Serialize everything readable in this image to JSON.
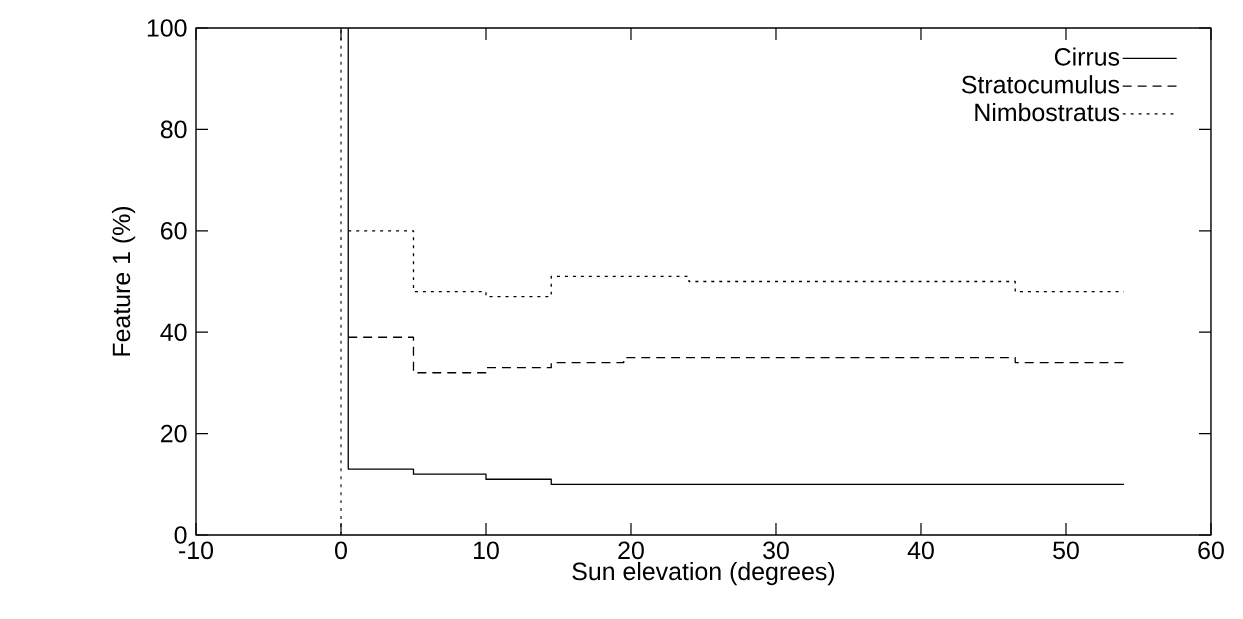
{
  "chart_data": {
    "type": "step",
    "xlabel": "Sun elevation (degrees)",
    "ylabel": "Feature 1 (%)",
    "xlim": [
      -10,
      60
    ],
    "xticks": [
      -10,
      0,
      10,
      20,
      30,
      40,
      50,
      60
    ],
    "ylim": [
      0,
      100
    ],
    "yticks": [
      0,
      20,
      40,
      60,
      80,
      100
    ],
    "legend": "top right",
    "series": [
      {
        "name": "Cirrus",
        "color": "#000000",
        "line_style": "solid",
        "x": [
          0.5,
          0.5,
          5,
          10,
          14.5,
          54
        ],
        "values": [
          100,
          13,
          12,
          11,
          10,
          10
        ]
      },
      {
        "name": "Stratocumulus",
        "color": "#000000",
        "line_style": "dashed",
        "x": [
          0.5,
          5,
          10,
          14.5,
          19.5,
          46.5,
          54
        ],
        "values": [
          39,
          32,
          33,
          34,
          35,
          34,
          34
        ]
      },
      {
        "name": "Nimbostratus",
        "color": "#000000",
        "line_style": "dotted",
        "x": [
          0.5,
          5,
          10,
          14.5,
          24,
          46.5,
          54
        ],
        "values": [
          60,
          48,
          47,
          51,
          50,
          48,
          48
        ]
      }
    ],
    "ref_lines": [
      {
        "axis": "x",
        "value": 0,
        "line_style": "dotted"
      }
    ]
  }
}
